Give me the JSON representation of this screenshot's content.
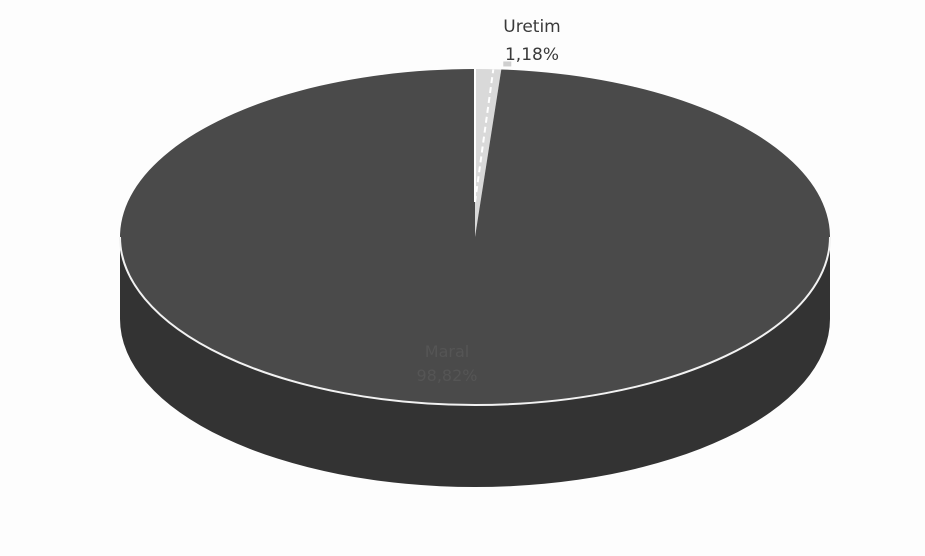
{
  "chart_data": {
    "type": "pie",
    "style": "3d",
    "title": "",
    "legend": "none",
    "slices": [
      {
        "label": "Uretim",
        "value": 1.18,
        "value_text": "1,18%",
        "color": "#d9d9d9"
      },
      {
        "label": "Maral",
        "value": 98.82,
        "value_text": "98,82%",
        "color": "#4a4a4a"
      }
    ],
    "colors": {
      "top_main": "#4a4a4a",
      "side_main": "#333333",
      "rim_highlight": "#f2f2f2",
      "leader_line": "#ffffff"
    }
  }
}
